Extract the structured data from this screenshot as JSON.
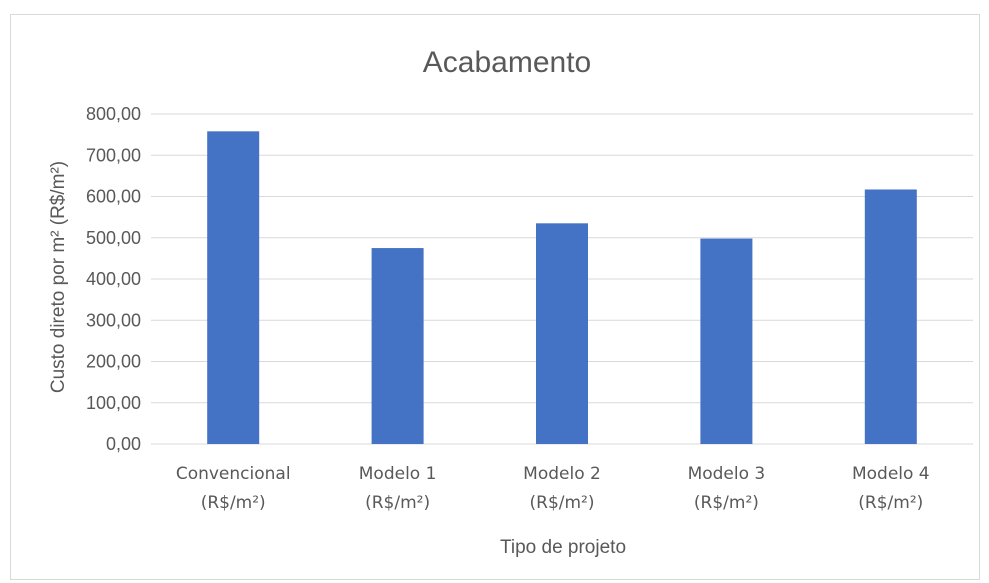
{
  "chart_data": {
    "type": "bar",
    "title": "Acabamento",
    "xlabel": "Tipo de projeto",
    "ylabel": "Custo direto por m² (R$/m²)",
    "categories": [
      [
        "Convencional",
        "(R$/m²)"
      ],
      [
        "Modelo 1",
        "(R$/m²)"
      ],
      [
        "Modelo 2",
        "(R$/m²)"
      ],
      [
        "Modelo 3",
        "(R$/m²)"
      ],
      [
        "Modelo 4",
        "(R$/m²)"
      ]
    ],
    "values": [
      758,
      475,
      535,
      498,
      617
    ],
    "ylim": [
      0,
      800
    ],
    "yticks": [
      "0,00",
      "100,00",
      "200,00",
      "300,00",
      "400,00",
      "500,00",
      "600,00",
      "700,00",
      "800,00"
    ],
    "ytick_values": [
      0,
      100,
      200,
      300,
      400,
      500,
      600,
      700,
      800
    ],
    "grid": true,
    "legend": "none",
    "colors": {
      "bar": "#4472c4",
      "grid": "#d9d9d9",
      "text": "#595959"
    }
  }
}
